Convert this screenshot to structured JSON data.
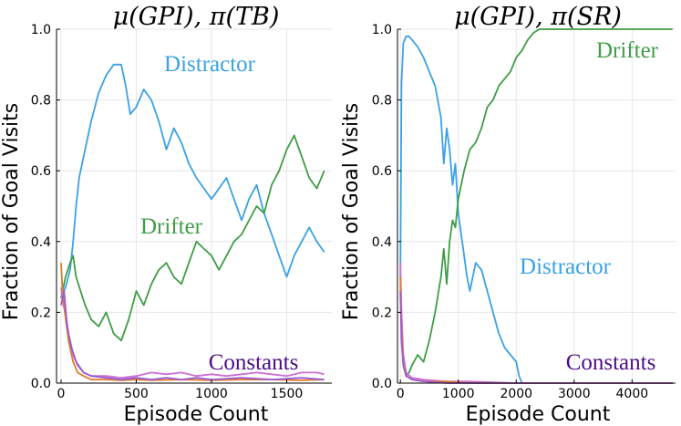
{
  "colors": {
    "distractor": "#3aa1e6",
    "drifter": "#3f9d45",
    "constants_a": "#cc6fd6",
    "constants_b": "#e07b2a",
    "constants_c": "#9a5bd0",
    "constants_label": "#4b0d8a"
  },
  "chart_data": [
    {
      "type": "line",
      "title": "μ(GPI), π(TB)",
      "xlabel": "Episode Count",
      "ylabel": "Fraction of Goal Visits",
      "xlim": [
        -30,
        1800
      ],
      "ylim": [
        0,
        1.0
      ],
      "xticks": [
        0,
        500,
        1000,
        1500
      ],
      "xtick_labels": [
        "0",
        "500",
        "1000",
        "1500"
      ],
      "yticks": [
        0.0,
        0.2,
        0.4,
        0.6,
        0.8,
        1.0
      ],
      "ytick_labels": [
        "0.0",
        "0.2",
        "0.4",
        "0.6",
        "0.8",
        "1.0"
      ],
      "grid": true,
      "annotations": [
        {
          "text": "Distractor",
          "series": "distractor"
        },
        {
          "text": "Drifter",
          "series": "drifter"
        },
        {
          "text": "Constants",
          "series": "constants_label"
        }
      ],
      "series": [
        {
          "key": "distractor",
          "color_key": "distractor",
          "x": [
            0,
            30,
            60,
            80,
            100,
            120,
            150,
            180,
            200,
            250,
            300,
            350,
            400,
            430,
            460,
            500,
            550,
            600,
            650,
            700,
            750,
            800,
            850,
            900,
            950,
            1000,
            1050,
            1100,
            1150,
            1200,
            1250,
            1300,
            1350,
            1400,
            1450,
            1500,
            1550,
            1600,
            1650,
            1700,
            1750
          ],
          "y": [
            0.24,
            0.27,
            0.32,
            0.4,
            0.5,
            0.58,
            0.64,
            0.7,
            0.74,
            0.82,
            0.87,
            0.9,
            0.9,
            0.84,
            0.76,
            0.78,
            0.83,
            0.8,
            0.74,
            0.66,
            0.72,
            0.68,
            0.62,
            0.58,
            0.55,
            0.52,
            0.55,
            0.58,
            0.52,
            0.46,
            0.52,
            0.56,
            0.48,
            0.42,
            0.36,
            0.3,
            0.36,
            0.4,
            0.44,
            0.4,
            0.37
          ]
        },
        {
          "key": "drifter",
          "color_key": "drifter",
          "x": [
            0,
            30,
            60,
            80,
            100,
            130,
            160,
            200,
            250,
            300,
            350,
            400,
            450,
            500,
            550,
            600,
            650,
            700,
            750,
            800,
            850,
            900,
            950,
            1000,
            1050,
            1100,
            1150,
            1200,
            1250,
            1300,
            1350,
            1400,
            1450,
            1500,
            1550,
            1600,
            1650,
            1700,
            1750
          ],
          "y": [
            0.24,
            0.3,
            0.34,
            0.36,
            0.3,
            0.26,
            0.22,
            0.18,
            0.16,
            0.2,
            0.14,
            0.12,
            0.18,
            0.26,
            0.22,
            0.28,
            0.32,
            0.34,
            0.3,
            0.28,
            0.34,
            0.4,
            0.38,
            0.36,
            0.32,
            0.36,
            0.4,
            0.42,
            0.46,
            0.5,
            0.48,
            0.56,
            0.6,
            0.66,
            0.7,
            0.64,
            0.58,
            0.55,
            0.6
          ]
        },
        {
          "key": "constants_a",
          "color_key": "constants_a",
          "x": [
            0,
            15,
            30,
            50,
            80,
            110,
            150,
            200,
            300,
            400,
            500,
            600,
            700,
            800,
            900,
            1000,
            1100,
            1200,
            1300,
            1400,
            1500,
            1600,
            1700,
            1750
          ],
          "y": [
            0.27,
            0.22,
            0.2,
            0.14,
            0.08,
            0.05,
            0.03,
            0.02,
            0.02,
            0.015,
            0.02,
            0.03,
            0.025,
            0.03,
            0.02,
            0.025,
            0.02,
            0.025,
            0.03,
            0.025,
            0.02,
            0.03,
            0.03,
            0.025
          ]
        },
        {
          "key": "constants_b",
          "color_key": "constants_b",
          "x": [
            0,
            10,
            25,
            50,
            80,
            110,
            150,
            200,
            300,
            400,
            500,
            600,
            800,
            1000,
            1200,
            1400,
            1600,
            1750
          ],
          "y": [
            0.34,
            0.26,
            0.2,
            0.12,
            0.06,
            0.03,
            0.02,
            0.01,
            0.01,
            0.008,
            0.01,
            0.008,
            0.01,
            0.008,
            0.01,
            0.01,
            0.008,
            0.01
          ]
        },
        {
          "key": "constants_c",
          "color_key": "constants_c",
          "x": [
            0,
            20,
            40,
            70,
            100,
            150,
            200,
            300,
            400,
            500,
            600,
            700,
            800,
            900,
            1000,
            1200,
            1400,
            1600,
            1750
          ],
          "y": [
            0.22,
            0.26,
            0.16,
            0.1,
            0.06,
            0.03,
            0.02,
            0.015,
            0.01,
            0.015,
            0.01,
            0.015,
            0.01,
            0.015,
            0.01,
            0.015,
            0.01,
            0.015,
            0.01
          ]
        }
      ]
    },
    {
      "type": "line",
      "title": "μ(GPI), π(SR)",
      "xlabel": "Episode Count",
      "ylabel": "Fraction of Goal Visits",
      "xlim": [
        -50,
        4750
      ],
      "ylim": [
        0,
        1.0
      ],
      "xticks": [
        0,
        1000,
        2000,
        3000,
        4000
      ],
      "xtick_labels": [
        "0",
        "1000",
        "2000",
        "3000",
        "4000"
      ],
      "yticks": [
        0.0,
        0.2,
        0.4,
        0.6,
        0.8,
        1.0
      ],
      "ytick_labels": [
        "0.0",
        "0.2",
        "0.4",
        "0.6",
        "0.8",
        "1.0"
      ],
      "grid": true,
      "annotations": [
        {
          "text": "Drifter",
          "series": "drifter"
        },
        {
          "text": "Distractor",
          "series": "distractor"
        },
        {
          "text": "Constants",
          "series": "constants_label"
        }
      ],
      "series": [
        {
          "key": "distractor",
          "color_key": "distractor",
          "x": [
            0,
            20,
            50,
            100,
            150,
            200,
            300,
            400,
            500,
            600,
            700,
            750,
            800,
            850,
            900,
            950,
            1000,
            1050,
            1100,
            1150,
            1200,
            1300,
            1400,
            1500,
            1600,
            1700,
            1800,
            1900,
            2000,
            2050,
            2100,
            2200,
            2400,
            3000,
            3500,
            4000,
            4700
          ],
          "y": [
            0.3,
            0.85,
            0.96,
            0.98,
            0.98,
            0.97,
            0.95,
            0.92,
            0.88,
            0.84,
            0.75,
            0.62,
            0.72,
            0.66,
            0.56,
            0.62,
            0.48,
            0.42,
            0.36,
            0.3,
            0.26,
            0.34,
            0.32,
            0.26,
            0.2,
            0.14,
            0.1,
            0.08,
            0.06,
            0.02,
            0.0,
            0.0,
            0.0,
            0.0,
            0.0,
            0.0,
            0.0
          ]
        },
        {
          "key": "drifter",
          "color_key": "drifter",
          "x": [
            0,
            50,
            100,
            150,
            200,
            300,
            400,
            500,
            600,
            700,
            750,
            800,
            850,
            900,
            950,
            1000,
            1100,
            1200,
            1300,
            1400,
            1500,
            1600,
            1700,
            1800,
            1900,
            2000,
            2100,
            2200,
            2300,
            2400,
            2600,
            3000,
            3500,
            4000,
            4700
          ],
          "y": [
            0.28,
            0.05,
            0.02,
            0.03,
            0.05,
            0.08,
            0.06,
            0.12,
            0.2,
            0.3,
            0.38,
            0.28,
            0.4,
            0.46,
            0.44,
            0.52,
            0.6,
            0.66,
            0.68,
            0.72,
            0.78,
            0.8,
            0.84,
            0.86,
            0.88,
            0.92,
            0.94,
            0.97,
            0.99,
            1.0,
            1.0,
            1.0,
            1.0,
            1.0,
            1.0
          ]
        },
        {
          "key": "constants_a",
          "color_key": "constants_a",
          "x": [
            0,
            20,
            50,
            100,
            200,
            400,
            800,
            1200,
            2000,
            3000,
            4000,
            4700
          ],
          "y": [
            0.34,
            0.2,
            0.08,
            0.03,
            0.015,
            0.01,
            0.005,
            0.005,
            0.0,
            0.0,
            0.0,
            0.0
          ]
        },
        {
          "key": "constants_b",
          "color_key": "constants_b",
          "x": [
            0,
            20,
            50,
            100,
            200,
            400,
            800,
            1200,
            2000,
            3000,
            4000,
            4700
          ],
          "y": [
            0.3,
            0.16,
            0.06,
            0.02,
            0.01,
            0.005,
            0.005,
            0.0,
            0.0,
            0.0,
            0.0,
            0.0
          ]
        },
        {
          "key": "constants_c",
          "color_key": "constants_c",
          "x": [
            0,
            20,
            50,
            100,
            200,
            400,
            800,
            1200,
            2000,
            3000,
            4000,
            4700
          ],
          "y": [
            0.26,
            0.12,
            0.05,
            0.02,
            0.01,
            0.005,
            0.0,
            0.0,
            0.0,
            0.0,
            0.0,
            0.0
          ]
        }
      ]
    }
  ]
}
